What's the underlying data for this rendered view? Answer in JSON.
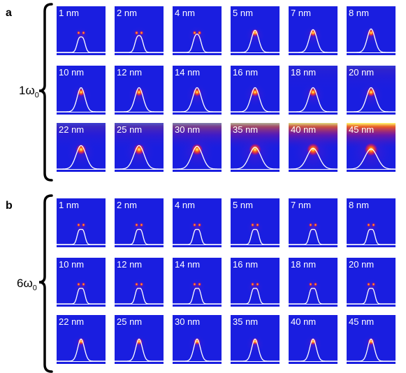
{
  "panels": [
    {
      "letter": "a",
      "side_label": {
        "main": "1ω",
        "sub": "0"
      },
      "rows": [
        [
          {
            "label": "1 nm",
            "split": true,
            "spot": 0.55,
            "glow": 0.0,
            "peak": 0.6,
            "wide": 0.8
          },
          {
            "label": "2 nm",
            "split": true,
            "spot": 0.6,
            "glow": 0.0,
            "peak": 0.62,
            "wide": 0.85
          },
          {
            "label": "4 nm",
            "split": true,
            "spot": 0.62,
            "glow": 0.0,
            "peak": 0.64,
            "wide": 0.9
          },
          {
            "label": "5 nm",
            "split": false,
            "spot": 0.65,
            "glow": 0.0,
            "peak": 0.66,
            "wide": 0.95
          },
          {
            "label": "7 nm",
            "split": false,
            "spot": 0.65,
            "glow": 0.0,
            "peak": 0.68,
            "wide": 1.0
          },
          {
            "label": "8 nm",
            "split": false,
            "spot": 0.65,
            "glow": 0.0,
            "peak": 0.7,
            "wide": 1.0
          }
        ],
        [
          {
            "label": "10 nm",
            "split": false,
            "spot": 0.7,
            "glow": 0.0,
            "peak": 0.72,
            "wide": 1.0
          },
          {
            "label": "12 nm",
            "split": false,
            "spot": 0.72,
            "glow": 0.0,
            "peak": 0.72,
            "wide": 1.05
          },
          {
            "label": "14 nm",
            "split": false,
            "spot": 0.74,
            "glow": 0.0,
            "peak": 0.72,
            "wide": 1.1
          },
          {
            "label": "16 nm",
            "split": false,
            "spot": 0.76,
            "glow": 0.0,
            "peak": 0.72,
            "wide": 1.1
          },
          {
            "label": "18 nm",
            "split": false,
            "spot": 0.78,
            "glow": 0.05,
            "peak": 0.72,
            "wide": 1.15
          },
          {
            "label": "20 nm",
            "split": false,
            "spot": 0.8,
            "glow": 0.1,
            "peak": 0.72,
            "wide": 1.2
          }
        ],
        [
          {
            "label": "22 nm",
            "split": false,
            "spot": 0.9,
            "glow": 0.15,
            "peak": 0.7,
            "wide": 1.3
          },
          {
            "label": "25 nm",
            "split": false,
            "spot": 0.95,
            "glow": 0.25,
            "peak": 0.7,
            "wide": 1.35
          },
          {
            "label": "30 nm",
            "split": false,
            "spot": 1.0,
            "glow": 0.45,
            "peak": 0.68,
            "wide": 1.4
          },
          {
            "label": "35 nm",
            "split": false,
            "spot": 1.05,
            "glow": 0.65,
            "peak": 0.65,
            "wide": 1.5
          },
          {
            "label": "40 nm",
            "split": false,
            "spot": 1.1,
            "glow": 0.85,
            "peak": 0.62,
            "wide": 1.55
          },
          {
            "label": "45 nm",
            "split": false,
            "spot": 1.15,
            "glow": 1.0,
            "peak": 0.6,
            "wide": 1.6
          }
        ]
      ]
    },
    {
      "letter": "b",
      "side_label": {
        "main": "6ω",
        "sub": "0"
      },
      "rows": [
        [
          {
            "label": "1 nm",
            "split": true,
            "spot": 0.55,
            "glow": 0.0,
            "peak": 0.62,
            "wide": 0.75
          },
          {
            "label": "2 nm",
            "split": true,
            "spot": 0.55,
            "glow": 0.0,
            "peak": 0.62,
            "wide": 0.75
          },
          {
            "label": "4 nm",
            "split": true,
            "spot": 0.55,
            "glow": 0.0,
            "peak": 0.62,
            "wide": 0.75
          },
          {
            "label": "5 nm",
            "split": true,
            "spot": 0.55,
            "glow": 0.0,
            "peak": 0.62,
            "wide": 0.75
          },
          {
            "label": "7 nm",
            "split": true,
            "spot": 0.55,
            "glow": 0.0,
            "peak": 0.62,
            "wide": 0.75
          },
          {
            "label": "8 nm",
            "split": true,
            "spot": 0.55,
            "glow": 0.0,
            "peak": 0.62,
            "wide": 0.75
          }
        ],
        [
          {
            "label": "10 nm",
            "split": true,
            "spot": 0.55,
            "glow": 0.0,
            "peak": 0.64,
            "wide": 0.75
          },
          {
            "label": "12 nm",
            "split": true,
            "spot": 0.55,
            "glow": 0.0,
            "peak": 0.64,
            "wide": 0.75
          },
          {
            "label": "14 nm",
            "split": true,
            "spot": 0.55,
            "glow": 0.0,
            "peak": 0.64,
            "wide": 0.75
          },
          {
            "label": "16 nm",
            "split": true,
            "spot": 0.55,
            "glow": 0.0,
            "peak": 0.64,
            "wide": 0.75
          },
          {
            "label": "18 nm",
            "split": true,
            "spot": 0.55,
            "glow": 0.0,
            "peak": 0.64,
            "wide": 0.75
          },
          {
            "label": "20 nm",
            "split": true,
            "spot": 0.55,
            "glow": 0.0,
            "peak": 0.64,
            "wide": 0.75
          }
        ],
        [
          {
            "label": "22 nm",
            "split": false,
            "spot": 0.6,
            "glow": 0.0,
            "peak": 0.66,
            "wide": 0.85
          },
          {
            "label": "25 nm",
            "split": false,
            "spot": 0.6,
            "glow": 0.0,
            "peak": 0.66,
            "wide": 0.85
          },
          {
            "label": "30 nm",
            "split": false,
            "spot": 0.6,
            "glow": 0.0,
            "peak": 0.66,
            "wide": 0.85
          },
          {
            "label": "35 nm",
            "split": false,
            "spot": 0.6,
            "glow": 0.0,
            "peak": 0.66,
            "wide": 0.85
          },
          {
            "label": "40 nm",
            "split": false,
            "spot": 0.6,
            "glow": 0.0,
            "peak": 0.66,
            "wide": 0.85
          },
          {
            "label": "45 nm",
            "split": false,
            "spot": 0.6,
            "glow": 0.0,
            "peak": 0.66,
            "wide": 0.85
          }
        ]
      ]
    }
  ],
  "colors": {
    "background": "#1a1ee0",
    "hot_core": "#ffff70",
    "hot_mid": "#ff6010",
    "hot_edge": "#c01070",
    "curve": "#ffffff"
  }
}
